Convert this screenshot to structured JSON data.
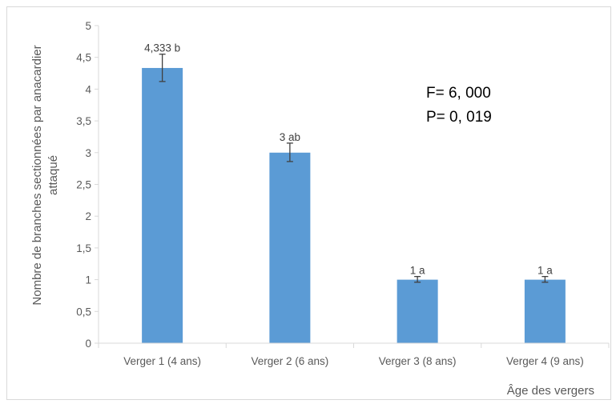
{
  "chart_data": {
    "type": "bar",
    "categories": [
      "Verger  1 (4 ans)",
      "Verger  2 (6 ans)",
      "Verger  3 (8 ans)",
      "Verger  4 (9 ans)"
    ],
    "values": [
      4.333,
      3,
      1,
      1
    ],
    "error_low": [
      4.12,
      2.86,
      0.96,
      0.96
    ],
    "error_high": [
      4.55,
      3.15,
      1.05,
      1.05
    ],
    "data_labels": [
      "4,333 b",
      "3 ab",
      "1 a",
      "1 a"
    ],
    "y_tick_labels": [
      "0",
      "0,5",
      "1",
      "1,5",
      "2",
      "2,5",
      "3",
      "3,5",
      "4",
      "4,5",
      "5"
    ],
    "ylim": [
      0,
      5
    ],
    "y_tick_step": 0.5,
    "ylabel_line1": "Nombre de branches sectionnées par anacardier",
    "ylabel_line2": "attaqué",
    "xlabel": "Âge des vergers",
    "annotations": [
      "F= 6, 000",
      "P= 0, 019"
    ],
    "grid": false,
    "legend": "none",
    "bar_color": "#5b9bd5",
    "error_bar_color": "#404040",
    "axis_color": "#d9d9d9"
  }
}
